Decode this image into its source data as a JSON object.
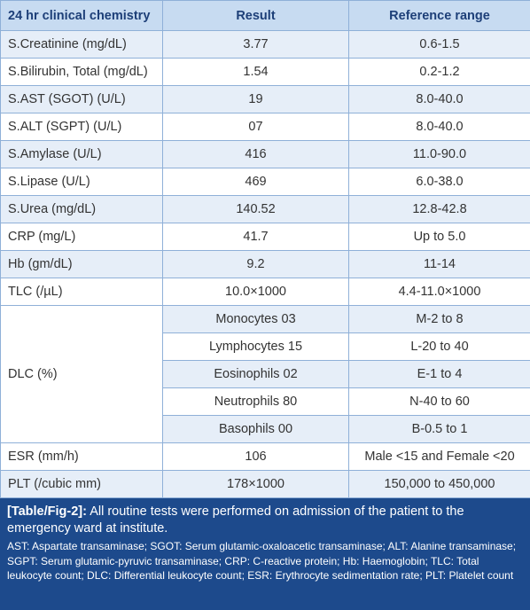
{
  "table": {
    "header": [
      "24 hr clinical chemistry",
      "Result",
      "Reference range"
    ],
    "rows": [
      [
        "S.Creatinine (mg/dL)",
        "3.77",
        "0.6-1.5"
      ],
      [
        "S.Bilirubin, Total (mg/dL)",
        "1.54",
        "0.2-1.2"
      ],
      [
        "S.AST (SGOT) (U/L)",
        "19",
        "8.0-40.0"
      ],
      [
        "S.ALT (SGPT) (U/L)",
        "07",
        "8.0-40.0"
      ],
      [
        "S.Amylase (U/L)",
        "416",
        "11.0-90.0"
      ],
      [
        "S.Lipase (U/L)",
        "469",
        "6.0-38.0"
      ],
      [
        "S.Urea (mg/dL)",
        "140.52",
        "12.8-42.8"
      ],
      [
        "CRP (mg/L)",
        "41.7",
        "Up to 5.0"
      ],
      [
        "Hb (gm/dL)",
        "9.2",
        "11-14"
      ],
      [
        "TLC (/µL)",
        "10.0×1000",
        "4.4-11.0×1000"
      ]
    ],
    "dlc": {
      "label": "DLC (%)",
      "subrows": [
        [
          "Monocytes 03",
          "M-2 to 8"
        ],
        [
          "Lymphocytes 15",
          "L-20 to 40"
        ],
        [
          "Eosinophils 02",
          "E-1 to 4"
        ],
        [
          "Neutrophils 80",
          "N-40 to 60"
        ],
        [
          "Basophils 00",
          "B-0.5 to 1"
        ]
      ]
    },
    "rows_after": [
      [
        "ESR (mm/h)",
        "106",
        "Male <15 and Female <20"
      ],
      [
        "PLT (/cubic mm)",
        "178×1000",
        "150,000 to 450,000"
      ]
    ]
  },
  "caption": {
    "label": "[Table/Fig-2]:",
    "text": "All routine tests were performed on admission of the patient to the emergency ward at institute.",
    "notes": "AST: Aspartate transaminase; SGOT: Serum glutamic-oxaloacetic transaminase; ALT: Alanine transaminase; SGPT: Serum glutamic-pyruvic transaminase; CRP: C-reactive protein; Hb: Haemoglobin; TLC: Total leukocyte count; DLC: Differential leukocyte count; ESR: Erythrocyte sedimentation rate; PLT: Platelet count"
  }
}
